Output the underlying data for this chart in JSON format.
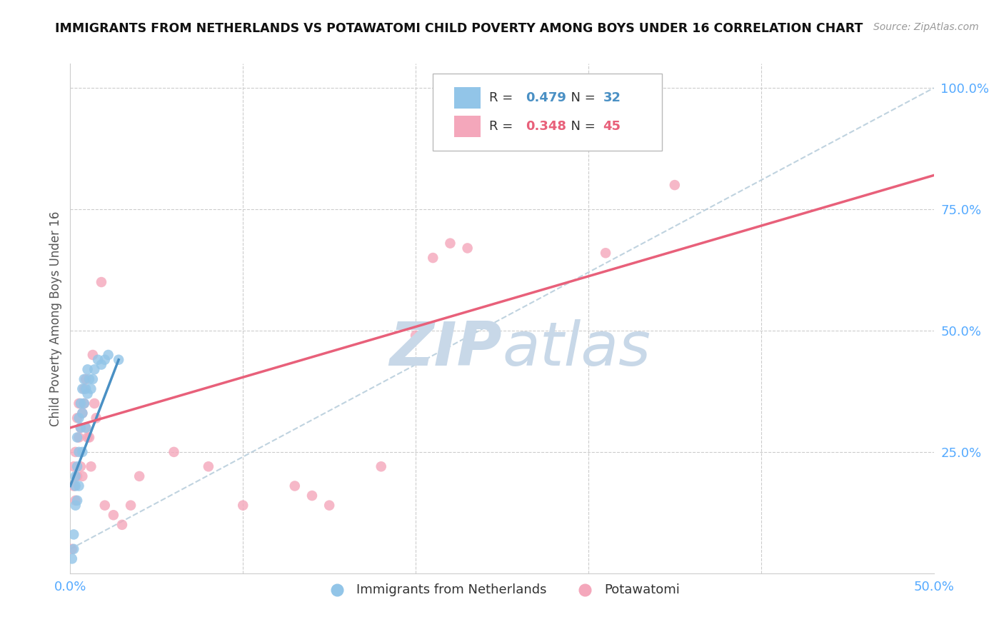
{
  "title": "IMMIGRANTS FROM NETHERLANDS VS POTAWATOMI CHILD POVERTY AMONG BOYS UNDER 16 CORRELATION CHART",
  "source": "Source: ZipAtlas.com",
  "ylabel": "Child Poverty Among Boys Under 16",
  "xlim": [
    0.0,
    0.5
  ],
  "ylim": [
    0.0,
    1.05
  ],
  "xticks": [
    0.0,
    0.1,
    0.2,
    0.3,
    0.4,
    0.5
  ],
  "xticklabels": [
    "0.0%",
    "",
    "",
    "",
    "",
    "50.0%"
  ],
  "yticks_right": [
    0.25,
    0.5,
    0.75,
    1.0
  ],
  "yticklabels_right": [
    "25.0%",
    "50.0%",
    "75.0%",
    "100.0%"
  ],
  "blue_color": "#92C5E8",
  "pink_color": "#F4A7BB",
  "blue_line_color": "#4A90C4",
  "pink_line_color": "#E8607A",
  "dashed_line_color": "#B0C8D8",
  "watermark_color": "#C8D8E8",
  "R_blue": 0.479,
  "N_blue": 32,
  "R_pink": 0.348,
  "N_pink": 45,
  "legend_blue_label": "Immigrants from Netherlands",
  "legend_pink_label": "Potawatomi",
  "blue_x": [
    0.001,
    0.002,
    0.002,
    0.003,
    0.003,
    0.003,
    0.004,
    0.004,
    0.004,
    0.005,
    0.005,
    0.005,
    0.006,
    0.006,
    0.007,
    0.007,
    0.007,
    0.008,
    0.008,
    0.009,
    0.009,
    0.01,
    0.01,
    0.011,
    0.012,
    0.013,
    0.014,
    0.016,
    0.018,
    0.02,
    0.022,
    0.028
  ],
  "blue_y": [
    0.03,
    0.05,
    0.08,
    0.14,
    0.18,
    0.2,
    0.15,
    0.22,
    0.28,
    0.18,
    0.25,
    0.32,
    0.3,
    0.35,
    0.25,
    0.33,
    0.38,
    0.35,
    0.4,
    0.3,
    0.38,
    0.37,
    0.42,
    0.4,
    0.38,
    0.4,
    0.42,
    0.44,
    0.43,
    0.44,
    0.45,
    0.44
  ],
  "pink_x": [
    0.001,
    0.002,
    0.002,
    0.003,
    0.003,
    0.004,
    0.004,
    0.005,
    0.005,
    0.006,
    0.006,
    0.007,
    0.007,
    0.008,
    0.008,
    0.009,
    0.009,
    0.01,
    0.011,
    0.012,
    0.013,
    0.014,
    0.015,
    0.018,
    0.02,
    0.025,
    0.03,
    0.035,
    0.04,
    0.06,
    0.08,
    0.1,
    0.13,
    0.14,
    0.15,
    0.18,
    0.2,
    0.21,
    0.22,
    0.23,
    0.25,
    0.27,
    0.29,
    0.31,
    0.35
  ],
  "pink_y": [
    0.05,
    0.18,
    0.22,
    0.15,
    0.25,
    0.2,
    0.32,
    0.28,
    0.35,
    0.22,
    0.3,
    0.2,
    0.33,
    0.35,
    0.38,
    0.3,
    0.4,
    0.28,
    0.28,
    0.22,
    0.45,
    0.35,
    0.32,
    0.6,
    0.14,
    0.12,
    0.1,
    0.14,
    0.2,
    0.25,
    0.22,
    0.14,
    0.18,
    0.16,
    0.14,
    0.22,
    0.49,
    0.65,
    0.68,
    0.67,
    0.96,
    0.97,
    0.97,
    0.66,
    0.8
  ],
  "blue_line_x": [
    0.0,
    0.028
  ],
  "blue_line_y": [
    0.18,
    0.44
  ],
  "pink_line_x": [
    0.0,
    0.5
  ],
  "pink_line_y": [
    0.3,
    0.82
  ]
}
